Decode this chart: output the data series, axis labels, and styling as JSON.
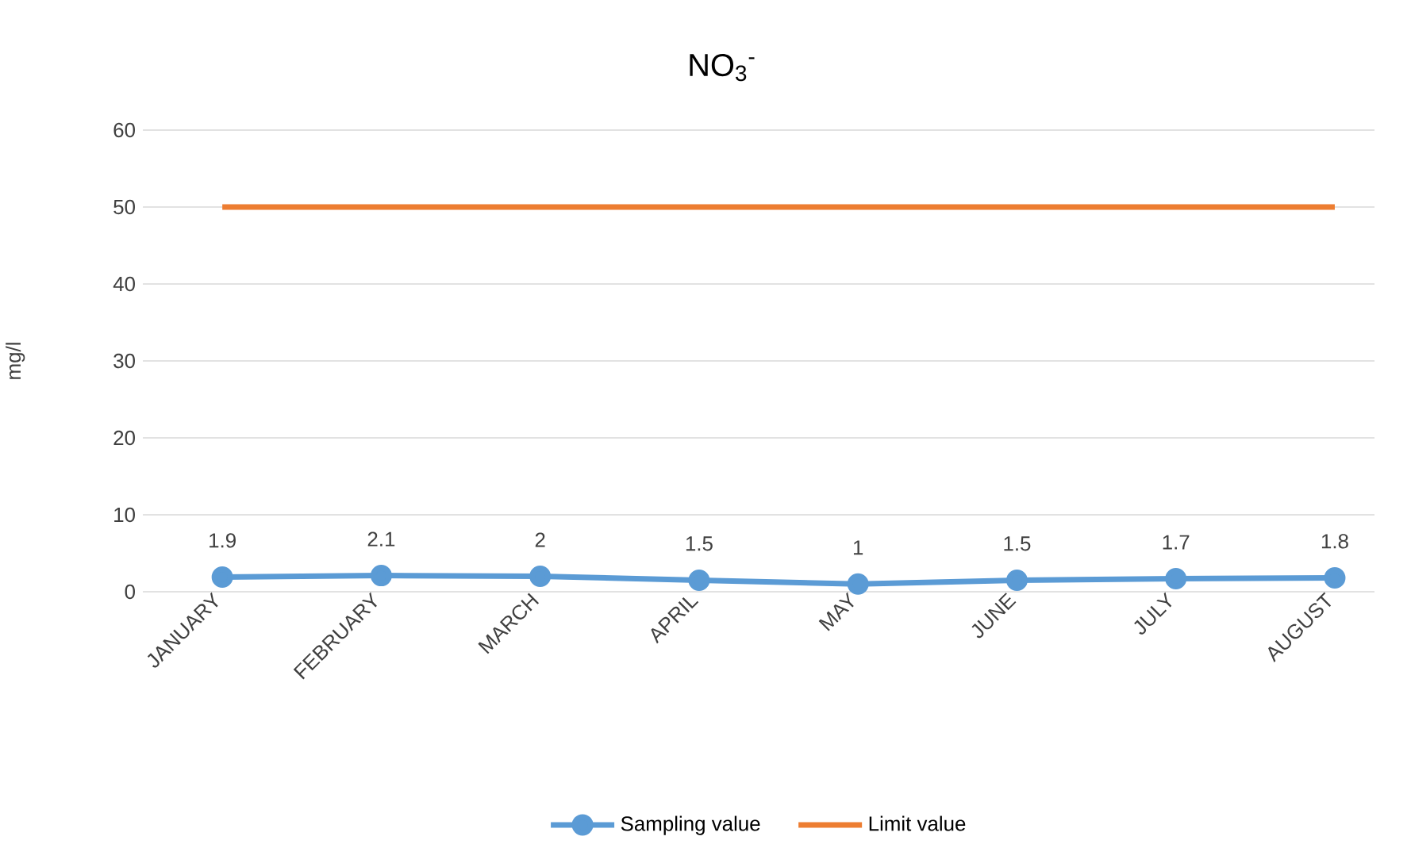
{
  "chart_data": {
    "type": "line",
    "title": "NO$_{3}$$^{-}$",
    "ylabel": "mg/l",
    "categories": [
      "JANUARY",
      "FEBRUARY",
      "MARCH",
      "APRIL",
      "MAY",
      "JUNE",
      "JULY",
      "AUGUST"
    ],
    "series": [
      {
        "name": "Sampling value",
        "color": "#5b9bd5",
        "marker": "circle",
        "values": [
          1.9,
          2.1,
          2,
          1.5,
          1,
          1.5,
          1.7,
          1.8
        ],
        "value_labels": [
          "1.9",
          "2.1",
          "2",
          "1.5",
          "1",
          "1.5",
          "1.7",
          "1.8"
        ]
      },
      {
        "name": "Limit value",
        "color": "#ed7d31",
        "marker": "none",
        "values": [
          50,
          50,
          50,
          50,
          50,
          50,
          50,
          50
        ]
      }
    ],
    "ylim": [
      0,
      60
    ],
    "yticks": [
      0,
      10,
      20,
      30,
      40,
      50,
      60
    ],
    "grid": "y",
    "legend": "bottom"
  }
}
